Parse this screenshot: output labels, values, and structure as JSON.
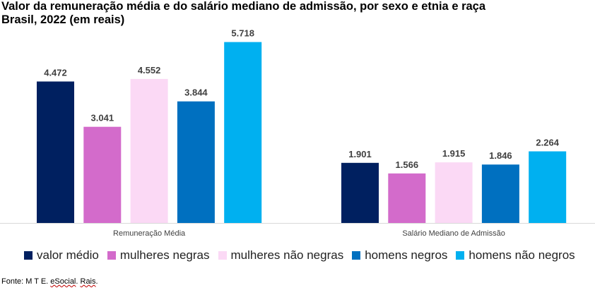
{
  "chart_data": {
    "type": "bar",
    "title_line1": "Valor da remuneração média e do salário mediano de admissão, por sexo e etnia e raça",
    "title_line2": "Brasil, 2022 (em reais)",
    "categories": [
      "Remuneração Média",
      "Salário Mediano de Admissão"
    ],
    "series": [
      {
        "name": "valor médio",
        "color": "#002060",
        "values": [
          4472,
          1901
        ],
        "labels": [
          "4.472",
          "1.901"
        ]
      },
      {
        "name": "mulheres negras",
        "color": "#D36BCB",
        "values": [
          3041,
          1566
        ],
        "labels": [
          "3.041",
          "1.566"
        ]
      },
      {
        "name": "mulheres não negras",
        "color": "#FBD9F5",
        "values": [
          4552,
          1915
        ],
        "labels": [
          "4.552",
          "1.915"
        ]
      },
      {
        "name": "homens negros",
        "color": "#0070C0",
        "values": [
          3844,
          1846
        ],
        "labels": [
          "3.844",
          "1.846"
        ]
      },
      {
        "name": "homens não negros",
        "color": "#00B0F0",
        "values": [
          5718,
          2264
        ],
        "labels": [
          "5.718",
          "2.264"
        ]
      }
    ],
    "ylim": [
      0,
      6000
    ],
    "grid": false,
    "legend_position": "bottom"
  },
  "source": {
    "prefix": "Fonte: M T E. ",
    "squiggle1": "eSocial",
    "middle": ". ",
    "squiggle2": "Rais",
    "suffix": "."
  }
}
